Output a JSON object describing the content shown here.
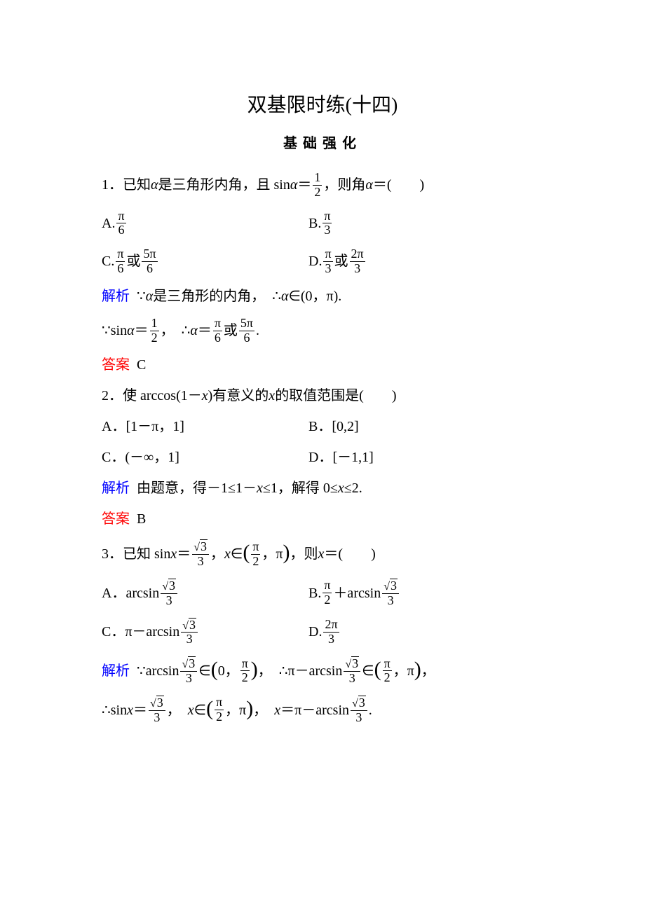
{
  "page": {
    "title": "双基限时练(十四)",
    "subtitle": "基础强化",
    "background_color": "#ffffff",
    "text_color": "#000000",
    "blue": "#0000ff",
    "red": "#ff0000",
    "title_fontsize": 28,
    "body_fontsize": 20
  },
  "q1": {
    "prefix": "1．已知",
    "var": "α",
    "mid1": "是三角形内角，且 sin",
    "eq": "＝",
    "frac_num": "1",
    "frac_den": "2",
    "tail": "，则角",
    "tail2": "＝(　　)",
    "A_pre": "A.",
    "A_num": "π",
    "A_den": "6",
    "B_pre": "B.",
    "B_num": "π",
    "B_den": "3",
    "C_pre": "C.",
    "C_n1": "π",
    "C_d1": "6",
    "C_or": "或",
    "C_n2": "5π",
    "C_d2": "6",
    "D_pre": "D.",
    "D_n1": "π",
    "D_d1": "3",
    "D_or": "或",
    "D_n2": "2π",
    "D_d2": "3",
    "expl_label": "解析",
    "expl_1a": "∵",
    "expl_1b": "是三角形的内角，",
    "expl_1c": "∴",
    "expl_1d": "∈(0，π).",
    "expl_2a": "∵sin",
    "expl_2b": "＝",
    "expl_2_n": "1",
    "expl_2_d": "2",
    "expl_2c": "，",
    "expl_2d": "∴",
    "expl_2e": "＝",
    "expl_2_n1": "π",
    "expl_2_d1": "6",
    "expl_2_or": "或",
    "expl_2_n2": "5π",
    "expl_2_d2": "6",
    "expl_2f": ".",
    "ans_label": "答案",
    "ans": "C"
  },
  "q2": {
    "stem": "2．使 arccos(1－",
    "var": "x",
    "stem2": ")有意义的",
    "stem3": "的取值范围是(　　)",
    "A": "A．[1－π，1]",
    "B": "B．[0,2]",
    "C": "C．(－∞，1]",
    "D": "D．[－1,1]",
    "expl_label": "解析",
    "expl": "由题意，得－1≤1－",
    "expl2": "≤1，解得 0≤",
    "expl3": "≤2.",
    "ans_label": "答案",
    "ans": "B"
  },
  "q3": {
    "prefix": "3．已知 sin",
    "var": "x",
    "eq": "＝",
    "rt3": "3",
    "den": "3",
    "mid": "，",
    "in": "∈",
    "half_n": "π",
    "half_d": "2",
    "comma": "，π",
    "tail": "，则",
    "tail2": "＝(　　)",
    "A_pre": "A．arcsin",
    "B_pre": "B.",
    "B_n": "π",
    "B_d": "2",
    "B_plus": "＋arcsin",
    "C_pre": "C．π－arcsin",
    "D_pre": "D.",
    "D_n": "2π",
    "D_d": "3",
    "expl_label": "解析",
    "e1a": "∵arcsin",
    "e1b": "∈",
    "e1_zero": "0，",
    "e1c": "，",
    "e1d": "∴π－arcsin",
    "e1e": "∈",
    "e1_end": "，π",
    "e1f": "，",
    "e2a": "∴sin",
    "e2b": "＝",
    "e2c": "，",
    "e2d": "∈",
    "e2e": "，",
    "e2f": "＝π－arcsin",
    "e2g": "."
  }
}
